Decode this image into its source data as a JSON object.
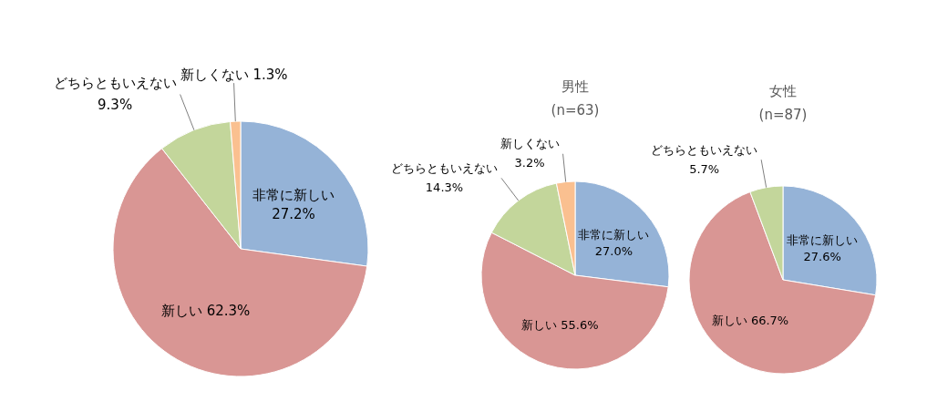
{
  "chart_data": [
    {
      "type": "pie",
      "categories": [
        "非常に新しい",
        "新しい",
        "どちらともいえない",
        "新しくない"
      ],
      "values": [
        27.2,
        62.3,
        9.3,
        1.3
      ],
      "value_labels": [
        "27.2%",
        "62.3%",
        "9.3%",
        "1.3%"
      ],
      "colors": [
        "#95b3d7",
        "#d99694",
        "#c3d69b",
        "#fac090"
      ]
    },
    {
      "type": "pie",
      "title": "男性",
      "subtitle": "(n=63)",
      "categories": [
        "非常に新しい",
        "新しい",
        "どちらともいえない",
        "新しくない"
      ],
      "values": [
        27.0,
        55.6,
        14.3,
        3.2
      ],
      "value_labels": [
        "27.0%",
        "55.6%",
        "14.3%",
        "3.2%"
      ],
      "colors": [
        "#95b3d7",
        "#d99694",
        "#c3d69b",
        "#fac090"
      ]
    },
    {
      "type": "pie",
      "title": "女性",
      "subtitle": "(n=87)",
      "categories": [
        "非常に新しい",
        "新しい",
        "どちらともいえない"
      ],
      "values": [
        27.6,
        66.7,
        5.7
      ],
      "value_labels": [
        "27.6%",
        "66.7%",
        "5.7%"
      ],
      "colors": [
        "#95b3d7",
        "#d99694",
        "#c3d69b"
      ]
    }
  ]
}
